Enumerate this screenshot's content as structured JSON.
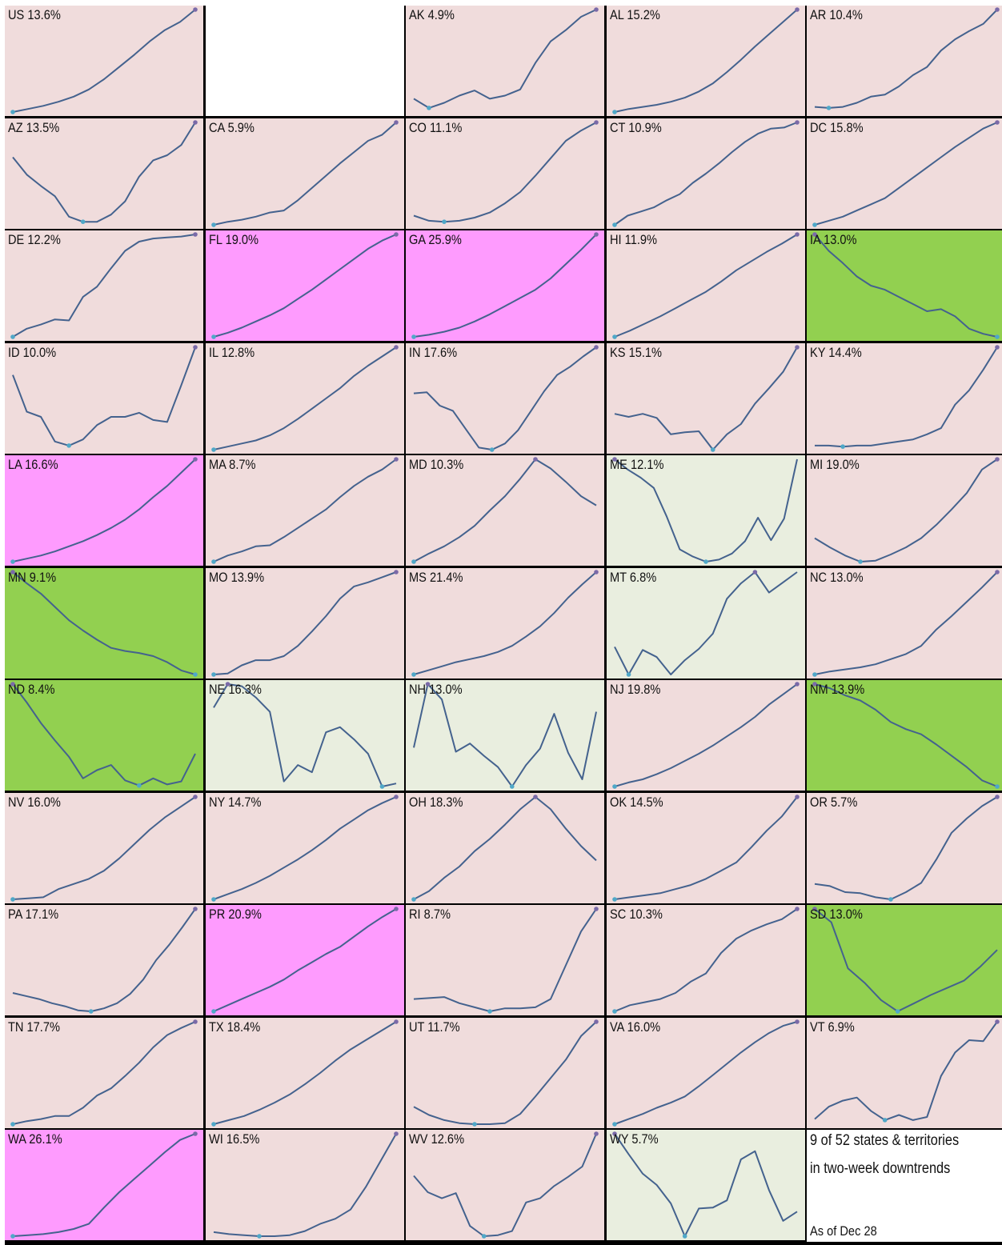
{
  "colors": {
    "normal": "#f0dcdc",
    "high": "#fe9bfe",
    "downtrend": "#92d050",
    "mixed": "#e9eedf",
    "line": "#44628e",
    "min_dot": "#4fa8c8",
    "max_dot": "#7a6aa8",
    "empty": "#ffffff"
  },
  "chart_data": {
    "type": "line",
    "description_layout": "small multiples",
    "panels": [
      {
        "label": "US 13.6%",
        "state": "normal",
        "values": [
          0,
          3,
          6,
          10,
          15,
          22,
          32,
          44,
          56,
          69,
          80,
          88,
          100
        ]
      },
      {
        "label": "",
        "state": "empty",
        "values": []
      },
      {
        "label": "AK 4.9%",
        "state": "normal",
        "values": [
          13,
          4,
          9,
          16,
          21,
          13,
          16,
          22,
          48,
          69,
          80,
          93,
          100
        ]
      },
      {
        "label": "AL 15.2%",
        "state": "normal",
        "values": [
          0,
          3,
          5,
          7,
          10,
          14,
          20,
          28,
          39,
          51,
          64,
          76,
          88,
          100
        ]
      },
      {
        "label": "AR 10.4%",
        "state": "normal",
        "values": [
          5,
          4,
          5,
          9,
          15,
          17,
          25,
          36,
          44,
          60,
          71,
          79,
          86,
          100
        ]
      },
      {
        "label": "AZ 13.5%",
        "state": "normal",
        "values": [
          66,
          49,
          38,
          28,
          8,
          3,
          3,
          10,
          23,
          47,
          63,
          68,
          78,
          100
        ]
      },
      {
        "label": "CA 5.9%",
        "state": "normal",
        "values": [
          0,
          3,
          5,
          8,
          12,
          14,
          24,
          36,
          48,
          60,
          71,
          82,
          88,
          100
        ]
      },
      {
        "label": "CO 11.1%",
        "state": "normal",
        "values": [
          9,
          4,
          3,
          4,
          7,
          12,
          21,
          32,
          48,
          65,
          82,
          92,
          100
        ]
      },
      {
        "label": "CT 10.9%",
        "state": "normal",
        "values": [
          0,
          9,
          13,
          17,
          24,
          30,
          41,
          50,
          60,
          71,
          81,
          89,
          94,
          95,
          100
        ]
      },
      {
        "label": "DC 15.8%",
        "state": "normal",
        "values": [
          0,
          4,
          8,
          14,
          20,
          26,
          36,
          46,
          56,
          66,
          76,
          85,
          94,
          100
        ]
      },
      {
        "label": "DE 12.2%",
        "state": "normal",
        "values": [
          0,
          8,
          12,
          17,
          16,
          39,
          49,
          67,
          84,
          93,
          96,
          97,
          98,
          100
        ]
      },
      {
        "label": "FL 19.0%",
        "state": "high",
        "values": [
          0,
          4,
          9,
          15,
          21,
          28,
          37,
          46,
          56,
          66,
          76,
          86,
          94,
          100
        ]
      },
      {
        "label": "GA 25.9%",
        "state": "high",
        "values": [
          0,
          2,
          5,
          9,
          15,
          22,
          30,
          38,
          46,
          57,
          71,
          85,
          100
        ]
      },
      {
        "label": "HI 11.9%",
        "state": "normal",
        "values": [
          0,
          6,
          13,
          20,
          28,
          36,
          44,
          54,
          65,
          74,
          83,
          91,
          100
        ]
      },
      {
        "label": "IA 13.0%",
        "state": "downtrend",
        "values": [
          100,
          84,
          72,
          59,
          50,
          46,
          39,
          32,
          25,
          27,
          20,
          8,
          3,
          0
        ]
      },
      {
        "label": "ID 10.0%",
        "state": "normal",
        "values": [
          73,
          37,
          32,
          8,
          4,
          10,
          24,
          32,
          32,
          36,
          29,
          27,
          63,
          100
        ]
      },
      {
        "label": "IL 12.8%",
        "state": "normal",
        "values": [
          0,
          3,
          6,
          9,
          14,
          21,
          30,
          40,
          50,
          60,
          72,
          82,
          91,
          100
        ]
      },
      {
        "label": "IN 17.6%",
        "state": "normal",
        "values": [
          55,
          56,
          43,
          38,
          20,
          2,
          0,
          6,
          19,
          38,
          57,
          73,
          81,
          91,
          100
        ]
      },
      {
        "label": "KS 15.1%",
        "state": "normal",
        "values": [
          35,
          32,
          35,
          31,
          15,
          17,
          18,
          0,
          15,
          25,
          45,
          60,
          76,
          100
        ]
      },
      {
        "label": "KY 14.4%",
        "state": "normal",
        "values": [
          4,
          4,
          3,
          4,
          4,
          6,
          8,
          10,
          15,
          21,
          44,
          58,
          78,
          100
        ]
      },
      {
        "label": "LA 16.6%",
        "state": "high",
        "values": [
          0,
          3,
          6,
          10,
          15,
          20,
          26,
          33,
          41,
          51,
          63,
          74,
          87,
          100
        ]
      },
      {
        "label": "MA 8.7%",
        "state": "normal",
        "values": [
          0,
          6,
          10,
          15,
          16,
          24,
          33,
          42,
          51,
          63,
          74,
          83,
          90,
          100
        ]
      },
      {
        "label": "MD 10.3%",
        "state": "normal",
        "values": [
          0,
          8,
          15,
          24,
          35,
          50,
          64,
          81,
          100,
          91,
          78,
          64,
          55
        ]
      },
      {
        "label": "ME 12.1%",
        "state": "mixed",
        "values": [
          100,
          90,
          82,
          72,
          44,
          12,
          5,
          0,
          2,
          8,
          20,
          43,
          21,
          42,
          100
        ]
      },
      {
        "label": "MI 19.0%",
        "state": "normal",
        "values": [
          23,
          14,
          6,
          0,
          1,
          7,
          14,
          23,
          36,
          51,
          67,
          90,
          100
        ]
      },
      {
        "label": "MN 9.1%",
        "state": "downtrend",
        "values": [
          100,
          89,
          79,
          66,
          53,
          43,
          34,
          26,
          23,
          21,
          18,
          12,
          4,
          0
        ]
      },
      {
        "label": "MO 13.9%",
        "state": "normal",
        "values": [
          0,
          1,
          9,
          14,
          14,
          18,
          28,
          42,
          57,
          74,
          86,
          90,
          95,
          100
        ]
      },
      {
        "label": "MS 21.4%",
        "state": "normal",
        "values": [
          0,
          4,
          8,
          12,
          15,
          18,
          22,
          28,
          37,
          47,
          60,
          75,
          88,
          100
        ]
      },
      {
        "label": "MT 6.8%",
        "state": "mixed",
        "values": [
          27,
          0,
          24,
          17,
          0,
          14,
          25,
          40,
          74,
          89,
          100,
          80,
          90,
          100
        ]
      },
      {
        "label": "NC 13.0%",
        "state": "normal",
        "values": [
          0,
          3,
          5,
          7,
          10,
          15,
          20,
          28,
          44,
          57,
          71,
          85,
          100
        ]
      },
      {
        "label": "ND 8.4%",
        "state": "downtrend",
        "values": [
          100,
          82,
          62,
          45,
          29,
          8,
          16,
          21,
          6,
          1,
          8,
          2,
          5,
          32
        ]
      },
      {
        "label": "NE 16.3%",
        "state": "mixed",
        "values": [
          77,
          100,
          98,
          87,
          73,
          5,
          21,
          14,
          53,
          58,
          46,
          32,
          0,
          3
        ]
      },
      {
        "label": "NH 13.0%",
        "state": "mixed",
        "values": [
          38,
          100,
          85,
          34,
          42,
          30,
          19,
          0,
          21,
          37,
          71,
          33,
          7,
          73
        ]
      },
      {
        "label": "NJ 19.8%",
        "state": "normal",
        "values": [
          0,
          4,
          7,
          12,
          18,
          25,
          32,
          40,
          49,
          58,
          68,
          80,
          90,
          100
        ]
      },
      {
        "label": "NM 13.9%",
        "state": "downtrend",
        "values": [
          100,
          96,
          89,
          84,
          75,
          63,
          56,
          51,
          41,
          30,
          19,
          6,
          0
        ]
      },
      {
        "label": "NV 16.0%",
        "state": "normal",
        "values": [
          0,
          1,
          2,
          10,
          15,
          20,
          28,
          40,
          54,
          68,
          80,
          90,
          100
        ]
      },
      {
        "label": "NY 14.7%",
        "state": "normal",
        "values": [
          0,
          5,
          10,
          16,
          23,
          31,
          39,
          48,
          58,
          69,
          78,
          87,
          94,
          100
        ]
      },
      {
        "label": "OH 18.3%",
        "state": "normal",
        "values": [
          0,
          8,
          21,
          32,
          47,
          59,
          73,
          88,
          100,
          88,
          69,
          52,
          38
        ]
      },
      {
        "label": "OK 14.5%",
        "state": "normal",
        "values": [
          0,
          2,
          4,
          6,
          10,
          14,
          20,
          28,
          36,
          51,
          67,
          81,
          100
        ]
      },
      {
        "label": "OR 5.7%",
        "state": "normal",
        "values": [
          15,
          13,
          7,
          6,
          2,
          0,
          7,
          16,
          39,
          65,
          79,
          91,
          100
        ]
      },
      {
        "label": "PA 17.1%",
        "state": "normal",
        "values": [
          18,
          15,
          12,
          8,
          5,
          1,
          0,
          3,
          8,
          17,
          31,
          50,
          65,
          82,
          100
        ]
      },
      {
        "label": "PR 20.9%",
        "state": "high",
        "values": [
          0,
          6,
          12,
          18,
          24,
          31,
          40,
          48,
          56,
          63,
          73,
          83,
          92,
          100
        ]
      },
      {
        "label": "RI 8.7%",
        "state": "normal",
        "values": [
          12,
          13,
          14,
          8,
          4,
          0,
          3,
          3,
          4,
          12,
          45,
          78,
          100
        ]
      },
      {
        "label": "SC 10.3%",
        "state": "normal",
        "values": [
          0,
          6,
          9,
          12,
          18,
          29,
          37,
          57,
          71,
          79,
          85,
          90,
          100
        ]
      },
      {
        "label": "SD 13.0%",
        "state": "downtrend",
        "values": [
          100,
          87,
          42,
          28,
          11,
          0,
          8,
          16,
          23,
          30,
          44,
          60
        ]
      },
      {
        "label": "TN 17.7%",
        "state": "normal",
        "values": [
          0,
          3,
          5,
          8,
          8,
          16,
          28,
          35,
          47,
          60,
          75,
          87,
          94,
          100
        ]
      },
      {
        "label": "TX 18.4%",
        "state": "normal",
        "values": [
          0,
          4,
          8,
          14,
          21,
          29,
          39,
          50,
          62,
          73,
          82,
          91,
          100
        ]
      },
      {
        "label": "UT 11.7%",
        "state": "normal",
        "values": [
          17,
          9,
          4,
          1,
          0,
          0,
          1,
          10,
          27,
          45,
          63,
          86,
          100
        ]
      },
      {
        "label": "VA 16.0%",
        "state": "normal",
        "values": [
          0,
          5,
          10,
          16,
          21,
          27,
          37,
          48,
          59,
          70,
          80,
          89,
          96,
          100
        ]
      },
      {
        "label": "VT 6.9%",
        "state": "normal",
        "values": [
          5,
          17,
          23,
          26,
          13,
          4,
          9,
          4,
          7,
          47,
          70,
          82,
          81,
          100
        ]
      },
      {
        "label": "WA 26.1%",
        "state": "high",
        "values": [
          0,
          1,
          2,
          4,
          7,
          12,
          28,
          43,
          56,
          69,
          82,
          94,
          100
        ]
      },
      {
        "label": "WI 16.5%",
        "state": "normal",
        "values": [
          4,
          2,
          1,
          0,
          0,
          1,
          5,
          12,
          17,
          26,
          48,
          74,
          100
        ]
      },
      {
        "label": "WV 12.6%",
        "state": "normal",
        "values": [
          59,
          43,
          37,
          42,
          10,
          0,
          1,
          5,
          33,
          37,
          49,
          58,
          68,
          100
        ]
      },
      {
        "label": "WY 5.7%",
        "state": "mixed",
        "values": [
          100,
          80,
          61,
          50,
          32,
          0,
          27,
          28,
          35,
          75,
          83,
          45,
          15,
          24
        ]
      }
    ],
    "note": {
      "line1": "9 of 52 states & territories",
      "line2": "in two-week downtrends",
      "footer": "As of Dec 28"
    }
  }
}
